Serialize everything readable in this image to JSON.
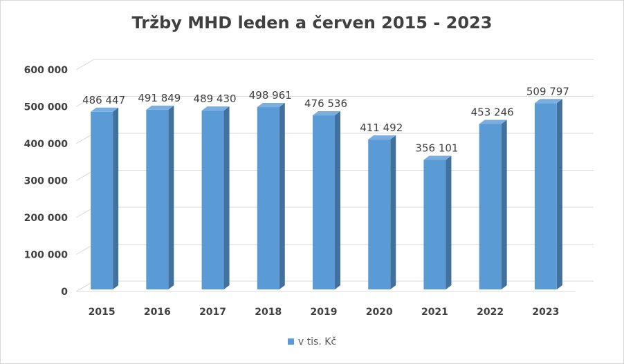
{
  "chart_data": {
    "type": "bar",
    "title": "Tržby MHD leden a červen 2015 - 2023",
    "categories": [
      "2015",
      "2016",
      "2017",
      "2018",
      "2019",
      "2020",
      "2021",
      "2022",
      "2023"
    ],
    "series": [
      {
        "name": "v tis. Kč",
        "values": [
          486447,
          491849,
          489430,
          498961,
          476536,
          411492,
          356101,
          453246,
          509797
        ],
        "labels": [
          "486 447",
          "491 849",
          "489 430",
          "498 961",
          "476 536",
          "411 492",
          "356 101",
          "453 246",
          "509 797"
        ]
      }
    ],
    "y_ticks": [
      0,
      100000,
      200000,
      300000,
      400000,
      500000,
      600000
    ],
    "y_tick_labels": [
      "0",
      "100 000",
      "200 000",
      "300 000",
      "400 000",
      "500 000",
      "600 000"
    ],
    "ylim": [
      0,
      600000
    ],
    "grid": true,
    "legend_position": "bottom",
    "style_3d": true,
    "colors": {
      "bar_front": "#5b9bd5",
      "bar_side": "#41719c",
      "bar_top": "#7aaee0",
      "grid": "#d9d9d9",
      "text": "#404040"
    }
  }
}
